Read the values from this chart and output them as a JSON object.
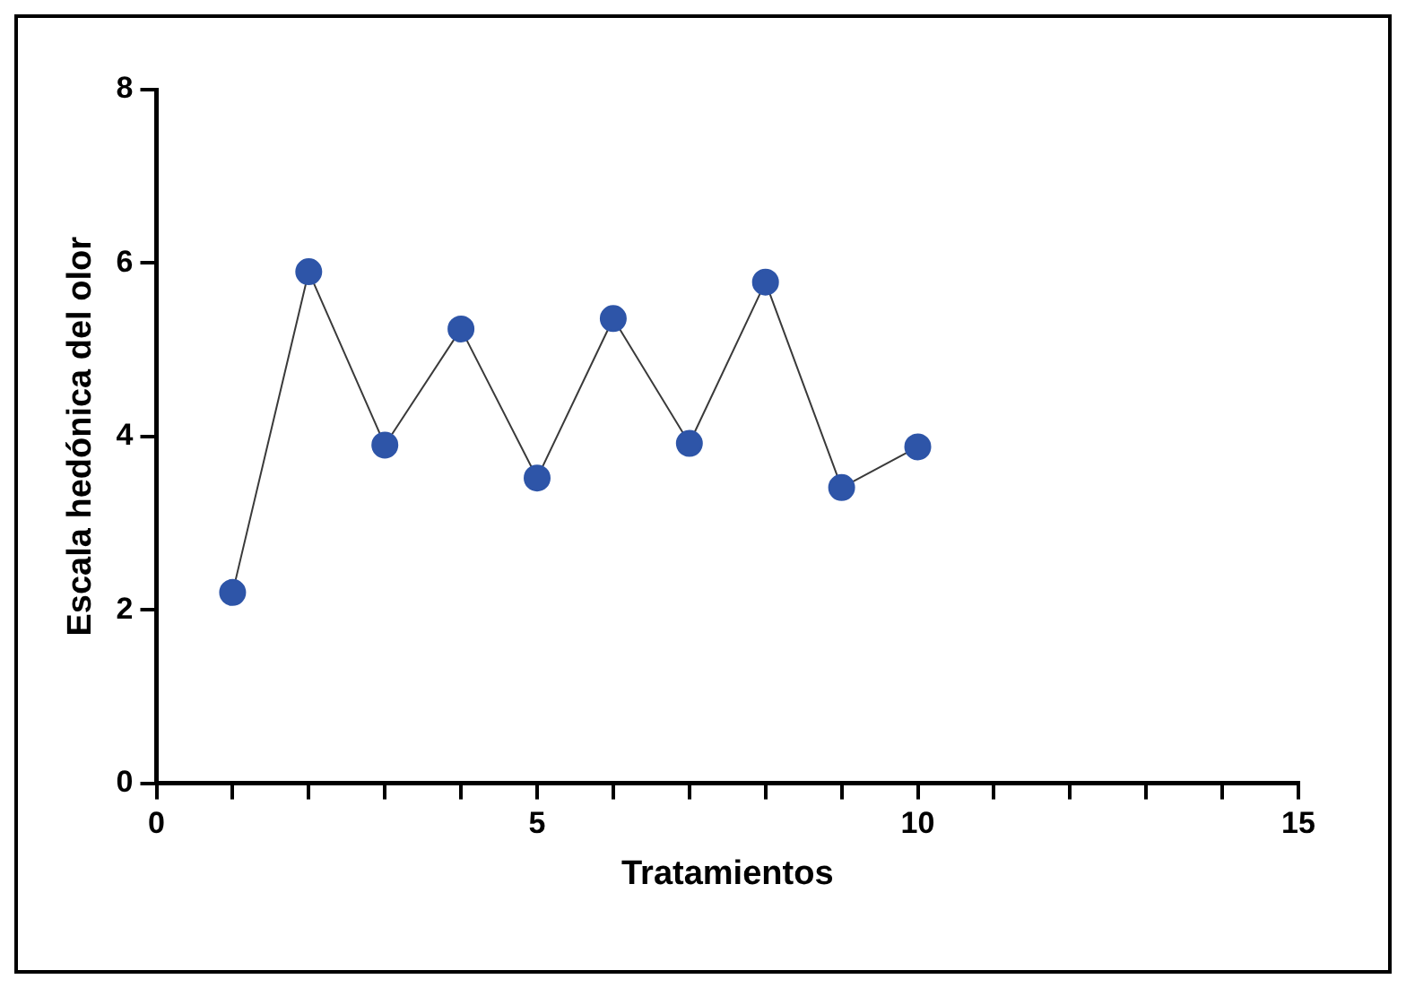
{
  "chart_data": {
    "type": "line",
    "xlabel": "Tratamientos",
    "ylabel": "Escala hedónica del olor",
    "x": [
      1,
      2,
      3,
      4,
      5,
      6,
      7,
      8,
      9,
      10
    ],
    "series": [
      {
        "color": "#2e55a8",
        "values": [
          2.2,
          5.9,
          3.9,
          5.24,
          3.52,
          5.36,
          3.92,
          5.78,
          3.41,
          3.88
        ]
      }
    ],
    "xlim": [
      0,
      15
    ],
    "xticks": [
      0,
      {
        "value": 1,
        "label": null
      },
      {
        "value": 2,
        "label": null
      },
      {
        "value": 3,
        "label": null
      },
      {
        "value": 4,
        "label": null
      },
      5,
      {
        "value": 6,
        "label": null
      },
      {
        "value": 7,
        "label": null
      },
      {
        "value": 8,
        "label": null
      },
      {
        "value": 9,
        "label": null
      },
      10,
      {
        "value": 11,
        "label": null
      },
      {
        "value": 12,
        "label": null
      },
      {
        "value": 13,
        "label": null
      },
      {
        "value": 14,
        "label": null
      },
      15
    ],
    "ylim": [
      0,
      8
    ],
    "yticks": [
      0,
      2,
      4,
      6,
      8
    ],
    "grid": false,
    "legend": false,
    "marker": "circle",
    "line_style": "solid"
  }
}
